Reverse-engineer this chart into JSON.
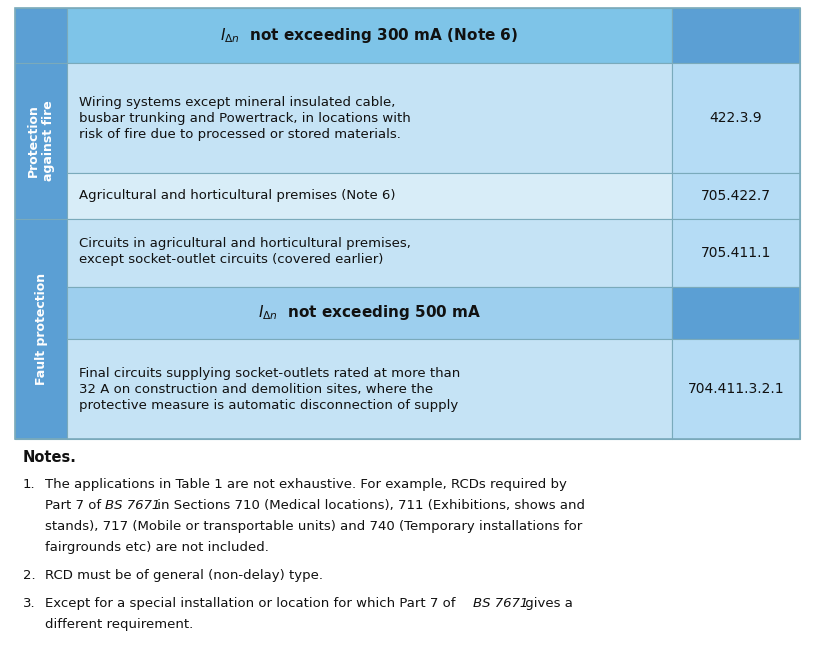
{
  "bg_color": "#ffffff",
  "col_side_color": "#5b9fd4",
  "col_header_color": "#7ec4e8",
  "col_light_row": "#c5e3f5",
  "col_alt_row": "#d8edf8",
  "col_subhdr": "#9dcfee",
  "col_ref": "#b5dcf5",
  "col_border": "#7aaabb",
  "text_dark": "#111111",
  "text_white": "#ffffff",
  "header_row_text1": "not exceeding 300 mA (Note 6)",
  "header_row_text2": "not exceeding 500 mA",
  "protection_label": "Protection\nagainst fire",
  "fault_label": "Fault protection",
  "row1_line1": "Wiring systems except mineral insulated cable,",
  "row1_line2": "busbar trunking and Powertrack, in locations with",
  "row1_line3": "risk of fire due to processed or stored materials.",
  "row1_ref": "422.3.9",
  "row2_desc": "Agricultural and horticultural premises (Note 6)",
  "row2_ref": "705.422.7",
  "row3_line1": "Circuits in agricultural and horticultural premises,",
  "row3_line2": "except socket-outlet circuits (covered earlier)",
  "row3_ref": "705.411.1",
  "row4_line1": "Final circuits supplying socket-outlets rated at more than",
  "row4_line2": "32 A on construction and demolition sites, where the",
  "row4_line3": "protective measure is automatic disconnection of supply",
  "row4_ref": "704.411.3.2.1",
  "notes_title": "Notes.",
  "note1_line1": "The applications in Table 1 are not exhaustive. For example, RCDs required by",
  "note1_line2": "Part 7 of                    in Sections 710 (Medical locations), 711 (Exhibitions, shows and",
  "note1_line2_bs": "BS 7671",
  "note1_line3": "stands), 717 (Mobile or transportable units) and 740 (Temporary installations for",
  "note1_line4": "fairgrounds etc) are not included.",
  "note2": "RCD must be of general (non-delay) type.",
  "note3_line1": "Except for a special installation or location for which Part 7 of               gives a",
  "note3_line1_bs": "BS 7671",
  "note3_line2": "different requirement."
}
